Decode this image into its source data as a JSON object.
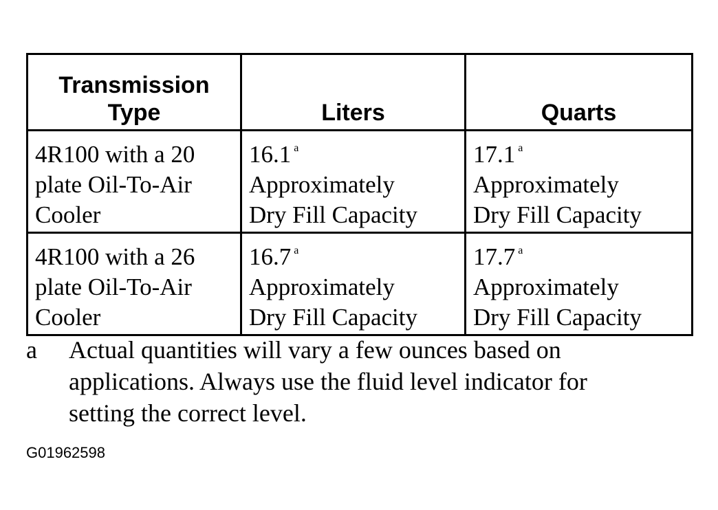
{
  "table": {
    "header": [
      "Transmission Type",
      "Liters",
      "Quarts"
    ],
    "rows": [
      [
        {
          "lines": [
            "4R100 with a 20",
            "plate Oil-To-Air",
            "Cooler"
          ]
        },
        {
          "value": "16.1",
          "note": "a",
          "lines": [
            "Approximately",
            "Dry Fill Capacity"
          ]
        },
        {
          "value": "17.1",
          "note": "a",
          "lines": [
            "Approximately",
            "Dry Fill Capacity"
          ]
        }
      ],
      [
        {
          "lines": [
            "4R100 with a 26",
            "plate Oil-To-Air",
            "Cooler"
          ]
        },
        {
          "value": "16.7",
          "note": "a",
          "lines": [
            "Approximately",
            "Dry Fill Capacity"
          ]
        },
        {
          "value": "17.7",
          "note": "a",
          "lines": [
            "Approximately",
            "Dry Fill Capacity"
          ]
        }
      ]
    ]
  },
  "footnote": {
    "mark": "a",
    "lines": [
      "Actual quantities will vary a few ounces based on",
      "applications. Always use the fluid level indicator for",
      "setting the correct level."
    ]
  },
  "figure_id": "G01962598"
}
